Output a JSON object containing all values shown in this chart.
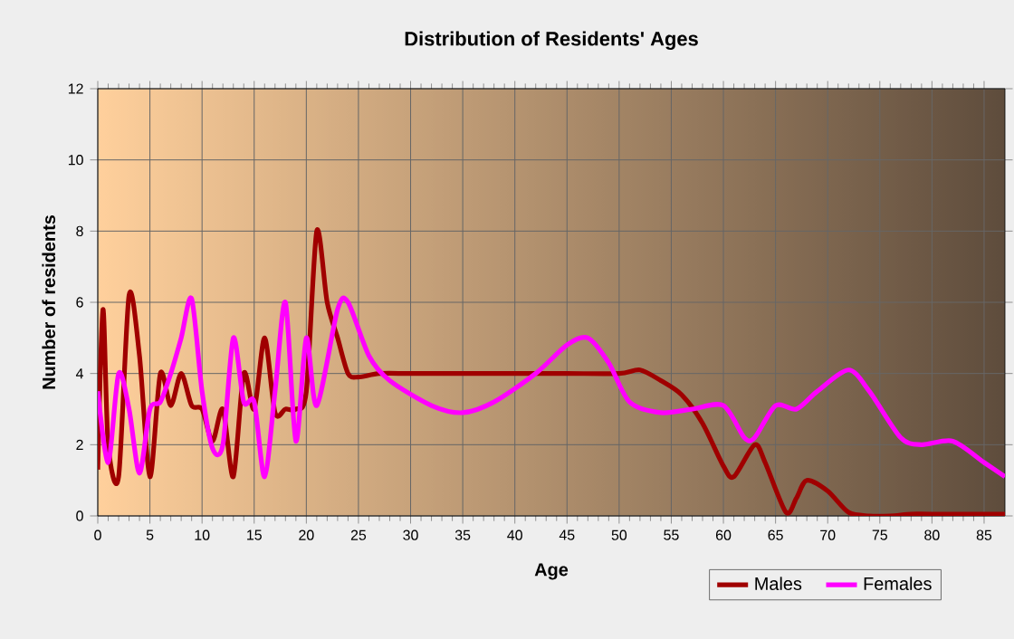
{
  "chart_data": {
    "type": "line",
    "title": "Distribution of Residents' Ages",
    "xlabel": "Age",
    "ylabel": "Number of residents",
    "xlim": [
      0,
      87
    ],
    "ylim": [
      0,
      12
    ],
    "xticks": [
      0,
      5,
      10,
      15,
      20,
      25,
      30,
      35,
      40,
      45,
      50,
      55,
      60,
      65,
      70,
      75,
      80,
      85
    ],
    "yticks": [
      0,
      2,
      4,
      6,
      8,
      10,
      12
    ],
    "grid": true,
    "legend": "bottom right",
    "marker": "none",
    "line_style": "solid",
    "series": [
      {
        "name": "Males",
        "color": "#a00000",
        "x": [
          0,
          0.5,
          1,
          2,
          3,
          4,
          5,
          6,
          7,
          8,
          9,
          10,
          11,
          12,
          13,
          14,
          15,
          16,
          17,
          18,
          19,
          20,
          21,
          22,
          23,
          24,
          25,
          27,
          30,
          35,
          40,
          45,
          50,
          52,
          54,
          56,
          58,
          60,
          61,
          63,
          64,
          66,
          67,
          68,
          70,
          72,
          74,
          76,
          78,
          80,
          87
        ],
        "values": [
          1.3,
          5.8,
          2,
          1.1,
          6.2,
          4.5,
          1.1,
          4,
          3.1,
          4,
          3.1,
          3,
          2.1,
          3,
          1.1,
          4,
          3,
          5,
          2.9,
          3,
          3,
          3.5,
          8,
          6,
          5,
          4,
          3.9,
          4,
          4,
          4,
          4,
          4,
          4,
          4.1,
          3.8,
          3.4,
          2.6,
          1.4,
          1.1,
          2,
          1.5,
          0.1,
          0.5,
          1,
          0.7,
          0.1,
          0,
          0,
          0.05,
          0.05,
          0.05
        ]
      },
      {
        "name": "Females",
        "color": "#ff00ff",
        "x": [
          0,
          1,
          2,
          3,
          4,
          5,
          6,
          7,
          8,
          9,
          10,
          11,
          12,
          13,
          14,
          15,
          16,
          17,
          18,
          19,
          20,
          21,
          23,
          24,
          26,
          28,
          32,
          35,
          38,
          42,
          45,
          47,
          49,
          51,
          54,
          57,
          60,
          62,
          63,
          65,
          67,
          69,
          72,
          74,
          77,
          79,
          82,
          85,
          87
        ],
        "values": [
          3.5,
          1.5,
          4,
          3,
          1.2,
          3,
          3.2,
          4,
          5,
          6.1,
          3.5,
          1.9,
          2,
          5,
          3.2,
          3.2,
          1.1,
          3.5,
          6,
          2.1,
          5,
          3.1,
          5.8,
          6,
          4.5,
          3.8,
          3.1,
          2.9,
          3.2,
          4,
          4.8,
          5,
          4.3,
          3.2,
          2.9,
          3,
          3.1,
          2.2,
          2.2,
          3.1,
          3,
          3.5,
          4.1,
          3.5,
          2.2,
          2,
          2.1,
          1.5,
          1.1
        ]
      }
    ]
  }
}
